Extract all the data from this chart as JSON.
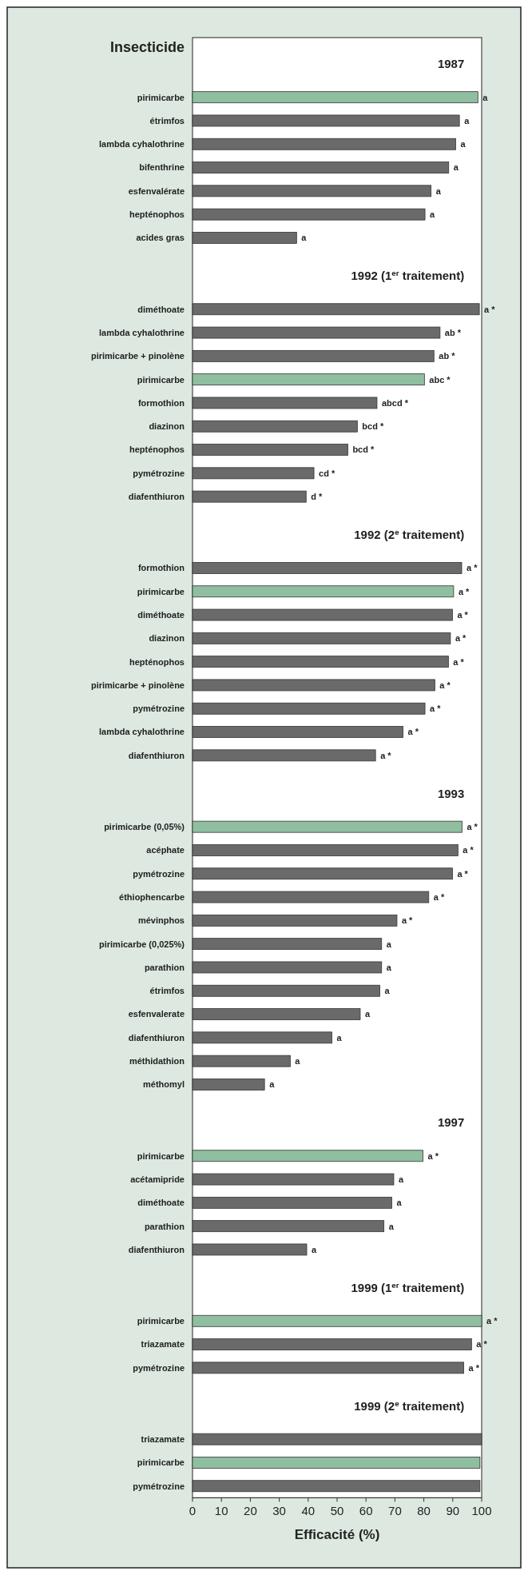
{
  "chart_data": [
    {
      "type": "bar",
      "orientation": "horizontal",
      "ylabel": "Insecticide",
      "title": "1987",
      "categories": [
        "pirimicarbe",
        "étrimfos",
        "lambda cyhalothrine",
        "bifenthrine",
        "esfenvalérate",
        "hepténophos",
        "acides gras"
      ],
      "values": [
        98.7,
        92.3,
        91,
        88.6,
        82.5,
        80.4,
        36
      ],
      "colors": [
        "#8fbfa0",
        "#6a6a6a",
        "#6a6a6a",
        "#6a6a6a",
        "#6a6a6a",
        "#6a6a6a",
        "#6a6a6a"
      ],
      "value_labels": [
        "a",
        "a",
        "a",
        "a",
        "a",
        "a",
        "a"
      ],
      "xlim": [
        0,
        100
      ],
      "tick_labels": "y"
    },
    {
      "type": "bar",
      "orientation": "horizontal",
      "title": "1992 (1$^{er}$ traitement)",
      "categories": [
        "diméthoate",
        "lambda cyhalothrine",
        "pirimicarbe + pinolène",
        "pirimicarbe",
        "formothion",
        "diazinon",
        "hepténophos",
        "pymétrozine",
        "diafenthiuron"
      ],
      "values": [
        99.2,
        85.6,
        83.5,
        80.2,
        63.8,
        57,
        53.7,
        42,
        39.3
      ],
      "colors": [
        "#6a6a6a",
        "#6a6a6a",
        "#6a6a6a",
        "#8fbfa0",
        "#6a6a6a",
        "#6a6a6a",
        "#6a6a6a",
        "#6a6a6a",
        "#6a6a6a"
      ],
      "value_labels": [
        "a *",
        "ab *",
        "ab *",
        "abc *",
        "abcd *",
        "bcd *",
        "bcd *",
        "cd *",
        "d *"
      ],
      "xlim": [
        0,
        100
      ],
      "tick_labels": "y"
    },
    {
      "type": "bar",
      "orientation": "horizontal",
      "title": "1992 (2$^{e}$ traitement)",
      "categories": [
        "formothion",
        "pirimicarbe",
        "diméthoate",
        "diazinon",
        "hepténophos",
        "pirimicarbe + pinolène",
        "pymétrozine",
        "lambda cyhalothrine",
        "diafenthiuron"
      ],
      "values": [
        93.1,
        90.3,
        89.9,
        89.2,
        88.5,
        83.8,
        80.4,
        72.8,
        63.3
      ],
      "colors": [
        "#6a6a6a",
        "#8fbfa0",
        "#6a6a6a",
        "#6a6a6a",
        "#6a6a6a",
        "#6a6a6a",
        "#6a6a6a",
        "#6a6a6a",
        "#6a6a6a"
      ],
      "value_labels": [
        "a *",
        "a *",
        "a *",
        "a *",
        "a *",
        "a *",
        "a *",
        "a *",
        "a *"
      ],
      "xlim": [
        0,
        100
      ],
      "tick_labels": "y"
    },
    {
      "type": "bar",
      "orientation": "horizontal",
      "title": "1993",
      "categories": [
        "pirimicarbe (0,05%)",
        "acéphate",
        "pymétrozine",
        "éthiophencarbe",
        "mévinphos",
        "pirimicarbe (0,025%)",
        "parathion",
        "étrimfos",
        "esfenvalerate",
        "diafenthiuron",
        "méthidathion",
        "méthomyl"
      ],
      "values": [
        93.2,
        91.8,
        89.9,
        81.7,
        70.7,
        65.4,
        65.4,
        64.8,
        58,
        48.2,
        33.8,
        24.9
      ],
      "colors": [
        "#8fbfa0",
        "#6a6a6a",
        "#6a6a6a",
        "#6a6a6a",
        "#6a6a6a",
        "#6a6a6a",
        "#6a6a6a",
        "#6a6a6a",
        "#6a6a6a",
        "#6a6a6a",
        "#6a6a6a",
        "#6a6a6a"
      ],
      "value_labels": [
        "a *",
        "a *",
        "a *",
        "a *",
        "a *",
        "a",
        "a",
        "a",
        "a",
        "a",
        "a",
        "a"
      ],
      "xlim": [
        0,
        100
      ],
      "tick_labels": "y"
    },
    {
      "type": "bar",
      "orientation": "horizontal",
      "title": "1997",
      "categories": [
        "pirimicarbe",
        "acétamipride",
        "diméthoate",
        "parathion",
        "diafenthiuron"
      ],
      "values": [
        79.7,
        69.6,
        68.9,
        66.2,
        39.5
      ],
      "colors": [
        "#8fbfa0",
        "#6a6a6a",
        "#6a6a6a",
        "#6a6a6a",
        "#6a6a6a"
      ],
      "value_labels": [
        "a *",
        "a",
        "a",
        "a",
        "a"
      ],
      "xlim": [
        0,
        100
      ],
      "tick_labels": "y"
    },
    {
      "type": "bar",
      "orientation": "horizontal",
      "title": "1999 (1$^{er}$ traitement)",
      "categories": [
        "pirimicarbe",
        "triazamate",
        "pymétrozine"
      ],
      "values": [
        100,
        96.5,
        93.8
      ],
      "colors": [
        "#8fbfa0",
        "#6a6a6a",
        "#6a6a6a"
      ],
      "value_labels": [
        "a *",
        "a *",
        "a *"
      ],
      "xlim": [
        0,
        100
      ],
      "tick_labels": "y"
    },
    {
      "type": "bar",
      "orientation": "horizontal",
      "title": "1999 (2$^{e}$ traitement)",
      "categories": [
        "triazamate",
        "pirimicarbe",
        "pymétrozine"
      ],
      "values": [
        100,
        99.4,
        99.4
      ],
      "colors": [
        "#6a6a6a",
        "#8fbfa0",
        "#6a6a6a"
      ],
      "xlim": [
        0,
        100
      ],
      "xticks": [
        0,
        10,
        20,
        30,
        40,
        50,
        60,
        70,
        80,
        90,
        100
      ],
      "xlabel": "Efficacité (%)"
    }
  ]
}
